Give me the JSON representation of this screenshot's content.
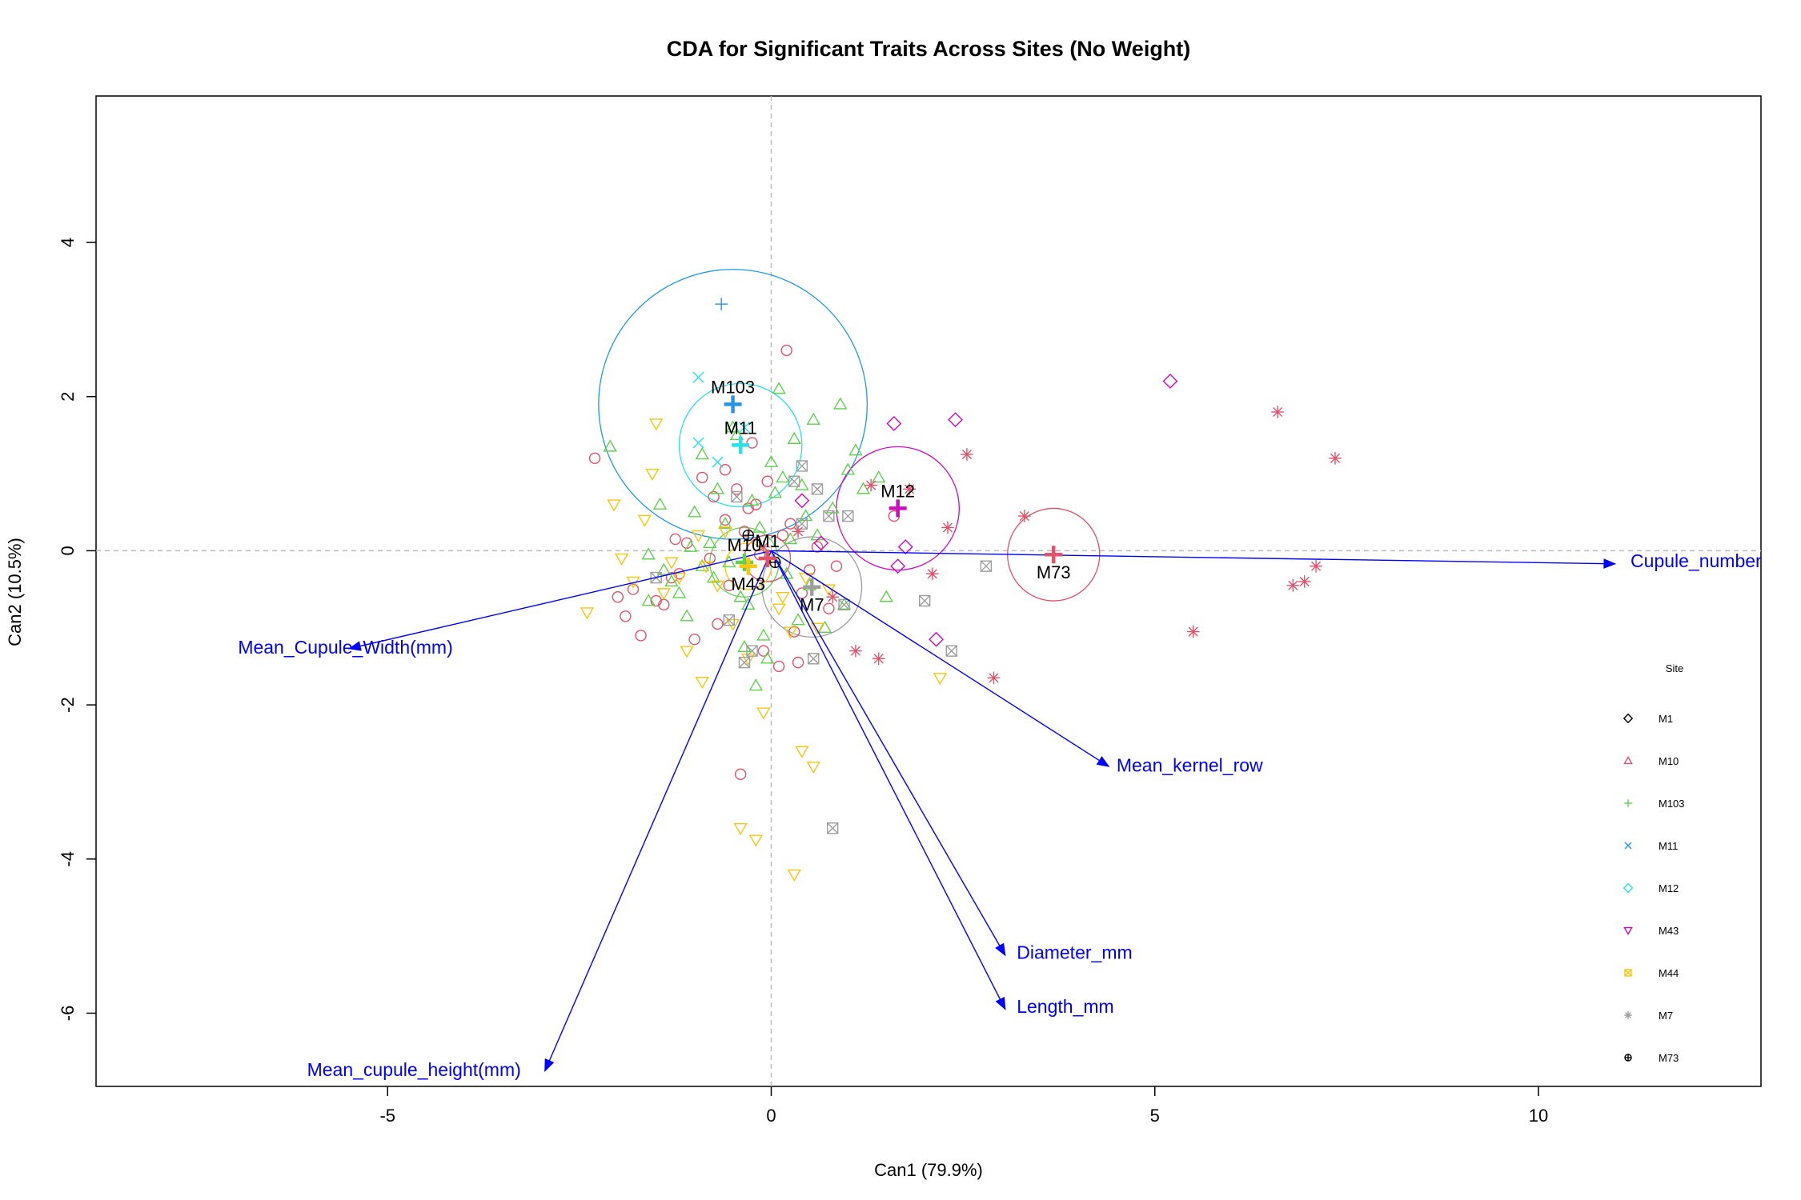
{
  "chart_data": {
    "type": "scatter",
    "title": "CDA for Significant Traits Across Sites (No Weight)",
    "xlabel": "Can1 (79.9%)",
    "ylabel": "Can2 (10.5%)",
    "xlim": [
      -8.8,
      12.9
    ],
    "ylim": [
      -6.95,
      5.9
    ],
    "x_ticks": [
      -5,
      0,
      5,
      10
    ],
    "y_ticks": [
      -6,
      -4,
      -2,
      0,
      2,
      4
    ],
    "reference_lines": {
      "x": 0,
      "y": 0
    },
    "legend": {
      "title": "Site",
      "placement": "right",
      "entries": [
        {
          "name": "M1",
          "color": "#000000",
          "symbol": "diamond"
        },
        {
          "name": "M10",
          "color": "#df536b",
          "symbol": "triangle-up"
        },
        {
          "name": "M103",
          "color": "#61d04f",
          "symbol": "plus"
        },
        {
          "name": "M11",
          "color": "#2297e6",
          "symbol": "cross"
        },
        {
          "name": "M12",
          "color": "#28e2e5",
          "symbol": "diamond"
        },
        {
          "name": "M43",
          "color": "#cd0bbc",
          "symbol": "triangle-down"
        },
        {
          "name": "M44",
          "color": "#f5c710",
          "symbol": "square-cross"
        },
        {
          "name": "M7",
          "color": "#9e9e9e",
          "symbol": "asterisk"
        },
        {
          "name": "M73",
          "color": "#000000",
          "symbol": "circle-plus"
        }
      ]
    },
    "group_means": [
      {
        "label": "M103",
        "x": -0.5,
        "y": 1.9,
        "color": "#2297e6",
        "radius": 1.75
      },
      {
        "label": "M11",
        "x": -0.4,
        "y": 1.37,
        "color": "#28e2e5",
        "radius": 0.8
      },
      {
        "label": "M12",
        "x": 1.65,
        "y": 0.55,
        "color": "#cd0bbc",
        "radius": 0.8
      },
      {
        "label": "M10",
        "x": -0.35,
        "y": -0.15,
        "color": "#61d04f",
        "radius": 0.45
      },
      {
        "label": "M1",
        "x": -0.05,
        "y": -0.1,
        "color": "#df536b",
        "radius": 0.3
      },
      {
        "label": "M43",
        "x": -0.3,
        "y": -0.2,
        "color": "#f5c710",
        "radius": 0.3
      },
      {
        "label": "M7",
        "x": 0.53,
        "y": -0.47,
        "color": "#9e9e9e",
        "radius": 0.65
      },
      {
        "label": "M73",
        "x": 3.68,
        "y": -0.05,
        "color": "#df536b",
        "radius": 0.6
      }
    ],
    "vectors": [
      {
        "name": "Cupule_number",
        "x": 11.0,
        "y": -0.17,
        "label_x": 11.2,
        "label_y": -0.15
      },
      {
        "name": "Mean_Cupule_Width(mm)",
        "x": -5.5,
        "y": -1.27,
        "label_x": -6.95,
        "label_y": -1.27
      },
      {
        "name": "Mean_kernel_row",
        "x": 4.4,
        "y": -2.8,
        "label_x": 4.5,
        "label_y": -2.8
      },
      {
        "name": "Diameter_mm",
        "x": 3.05,
        "y": -5.25,
        "label_x": 3.2,
        "label_y": -5.23
      },
      {
        "name": "Length_mm",
        "x": 3.05,
        "y": -5.95,
        "label_x": 3.2,
        "label_y": -5.93
      },
      {
        "name": "Mean_cupule_height(mm)",
        "x": -2.95,
        "y": -6.75,
        "label_x": -6.05,
        "label_y": -6.75
      }
    ],
    "series": [
      {
        "name": "M1",
        "color": "#df536b",
        "symbol": "circle",
        "x": [
          -0.3,
          0.2,
          -1.8,
          -1.4,
          -2.3,
          -0.6,
          -1.2,
          -0.9,
          -0.4,
          0.15,
          -0.1,
          -1.7,
          0.35,
          -0.2,
          -0.8,
          -1.5,
          0.6,
          0.85,
          -1.1,
          -0.7,
          -0.25,
          0.5,
          -2.0,
          -1.9,
          -0.35,
          0.1,
          -0.45,
          -0.55,
          -1.25,
          0.75,
          -0.05,
          0.4,
          1.6,
          0.3,
          -0.6,
          -1.0,
          -1.3,
          -0.15,
          -0.75,
          0.25
        ],
        "y": [
          0.55,
          2.6,
          -0.5,
          -0.7,
          1.2,
          0.4,
          -0.3,
          0.95,
          -2.9,
          0.2,
          -1.3,
          -1.1,
          -1.45,
          0.6,
          -0.1,
          -0.65,
          0.05,
          -0.2,
          0.1,
          -0.95,
          1.4,
          -0.25,
          -0.6,
          -0.85,
          0.25,
          -1.5,
          0.8,
          -0.45,
          0.15,
          -0.75,
          0.9,
          -0.55,
          0.45,
          -1.05,
          1.05,
          -1.15,
          -0.35,
          -0.05,
          0.7,
          0.35
        ]
      },
      {
        "name": "M10",
        "color": "#61d04f",
        "symbol": "triangle-up",
        "x": [
          0.1,
          0.55,
          -0.5,
          0.9,
          1.4,
          1.2,
          -2.1,
          -1.0,
          -1.6,
          -1.3,
          0.6,
          -0.7,
          0.2,
          1.5,
          0.35,
          -0.35,
          -0.2,
          -1.1,
          0.7,
          -1.2,
          -0.15,
          0.45,
          -0.9,
          0.3,
          -0.8,
          -0.55,
          0.0,
          -1.45,
          1.0,
          -0.3,
          0.8,
          0.15,
          -0.6,
          -0.05,
          -0.4,
          0.05,
          -0.9,
          0.5,
          -1.4,
          0.95,
          -0.25,
          -1.6,
          0.4,
          -0.75,
          1.1,
          -0.1,
          -0.45,
          0.25,
          -1.05
        ],
        "y": [
          2.1,
          1.7,
          1.6,
          1.9,
          0.95,
          0.8,
          1.35,
          0.5,
          -0.05,
          -0.4,
          0.2,
          0.8,
          -0.3,
          -0.6,
          -0.9,
          -1.25,
          -1.75,
          -0.85,
          -1.0,
          -0.55,
          0.3,
          0.45,
          1.25,
          1.45,
          0.1,
          -0.15,
          1.15,
          0.6,
          1.05,
          -0.7,
          0.55,
          0.95,
          0.35,
          -1.4,
          -0.6,
          0.75,
          -0.2,
          -0.45,
          -0.25,
          -0.7,
          0.65,
          -0.65,
          0.85,
          -0.35,
          1.3,
          -1.1,
          1.5,
          0.15,
          0.05
        ]
      },
      {
        "name": "M103",
        "color": "#2297e6",
        "symbol": "plus",
        "x": [
          -0.65
        ],
        "y": [
          3.2
        ]
      },
      {
        "name": "M11",
        "color": "#28e2e5",
        "symbol": "cross",
        "x": [
          -0.95,
          -0.95,
          -0.7,
          -0.35
        ],
        "y": [
          2.25,
          1.4,
          1.15,
          1.6
        ]
      },
      {
        "name": "M12",
        "color": "#cd0bbc",
        "symbol": "diamond",
        "x": [
          5.2,
          2.4,
          1.6,
          2.15,
          1.65,
          1.75,
          0.4,
          0.65
        ],
        "y": [
          2.2,
          1.7,
          1.65,
          -1.15,
          -0.2,
          0.05,
          0.65,
          0.1
        ]
      },
      {
        "name": "M43",
        "color": "#f5c710",
        "symbol": "triangle-down",
        "x": [
          -1.5,
          -2.05,
          -1.55,
          -0.9,
          -0.4,
          -0.2,
          0.3,
          0.55,
          0.4,
          -1.8,
          -2.4,
          -1.1,
          -0.5,
          0.25,
          2.2,
          0.6,
          -0.1,
          -1.3,
          -0.7,
          0.1,
          -0.85,
          0.15,
          -1.65,
          -1.2,
          -1.95,
          -0.6,
          0.75,
          -0.3,
          -1.4,
          -0.95,
          0.45
        ],
        "y": [
          1.65,
          0.6,
          1.0,
          -1.7,
          -3.6,
          -3.75,
          -4.2,
          -2.8,
          -2.6,
          -0.4,
          -0.8,
          -1.3,
          -0.95,
          -1.05,
          -1.65,
          -1.0,
          -2.1,
          -0.15,
          -0.45,
          -0.75,
          -0.2,
          -0.6,
          0.4,
          -0.35,
          -0.1,
          0.25,
          -0.5,
          -1.4,
          -0.55,
          0.2,
          -0.35
        ]
      },
      {
        "name": "M44",
        "color": "#9e9e9e",
        "symbol": "square-cross",
        "x": [
          0.4,
          0.6,
          0.75,
          1.0,
          2.8,
          2.0,
          2.35,
          -0.35,
          -0.25,
          0.55,
          0.8,
          -0.45,
          0.4,
          -1.5,
          0.3,
          -0.55,
          0.95
        ],
        "y": [
          1.1,
          0.8,
          0.45,
          0.45,
          -0.2,
          -0.65,
          -1.3,
          -1.45,
          -1.3,
          -1.4,
          -3.6,
          0.7,
          0.35,
          -0.35,
          0.9,
          -0.9,
          -0.7
        ]
      },
      {
        "name": "M7",
        "color": "#df536b",
        "symbol": "asterisk",
        "x": [
          6.6,
          7.35,
          2.55,
          3.3,
          2.3,
          1.4,
          1.1,
          1.3,
          2.9,
          5.5,
          6.8,
          7.1,
          6.95,
          0.8,
          0.35,
          -0.1,
          1.8,
          2.1
        ],
        "y": [
          1.8,
          1.2,
          1.25,
          0.45,
          0.3,
          -1.4,
          -1.3,
          0.85,
          -1.65,
          -1.05,
          -0.45,
          -0.2,
          -0.4,
          -0.6,
          0.25,
          0.05,
          0.8,
          -0.3
        ]
      },
      {
        "name": "M73",
        "color": "#000000",
        "symbol": "circle-plus",
        "x": [
          -0.3,
          0.05
        ],
        "y": [
          0.2,
          -0.15
        ]
      }
    ]
  }
}
